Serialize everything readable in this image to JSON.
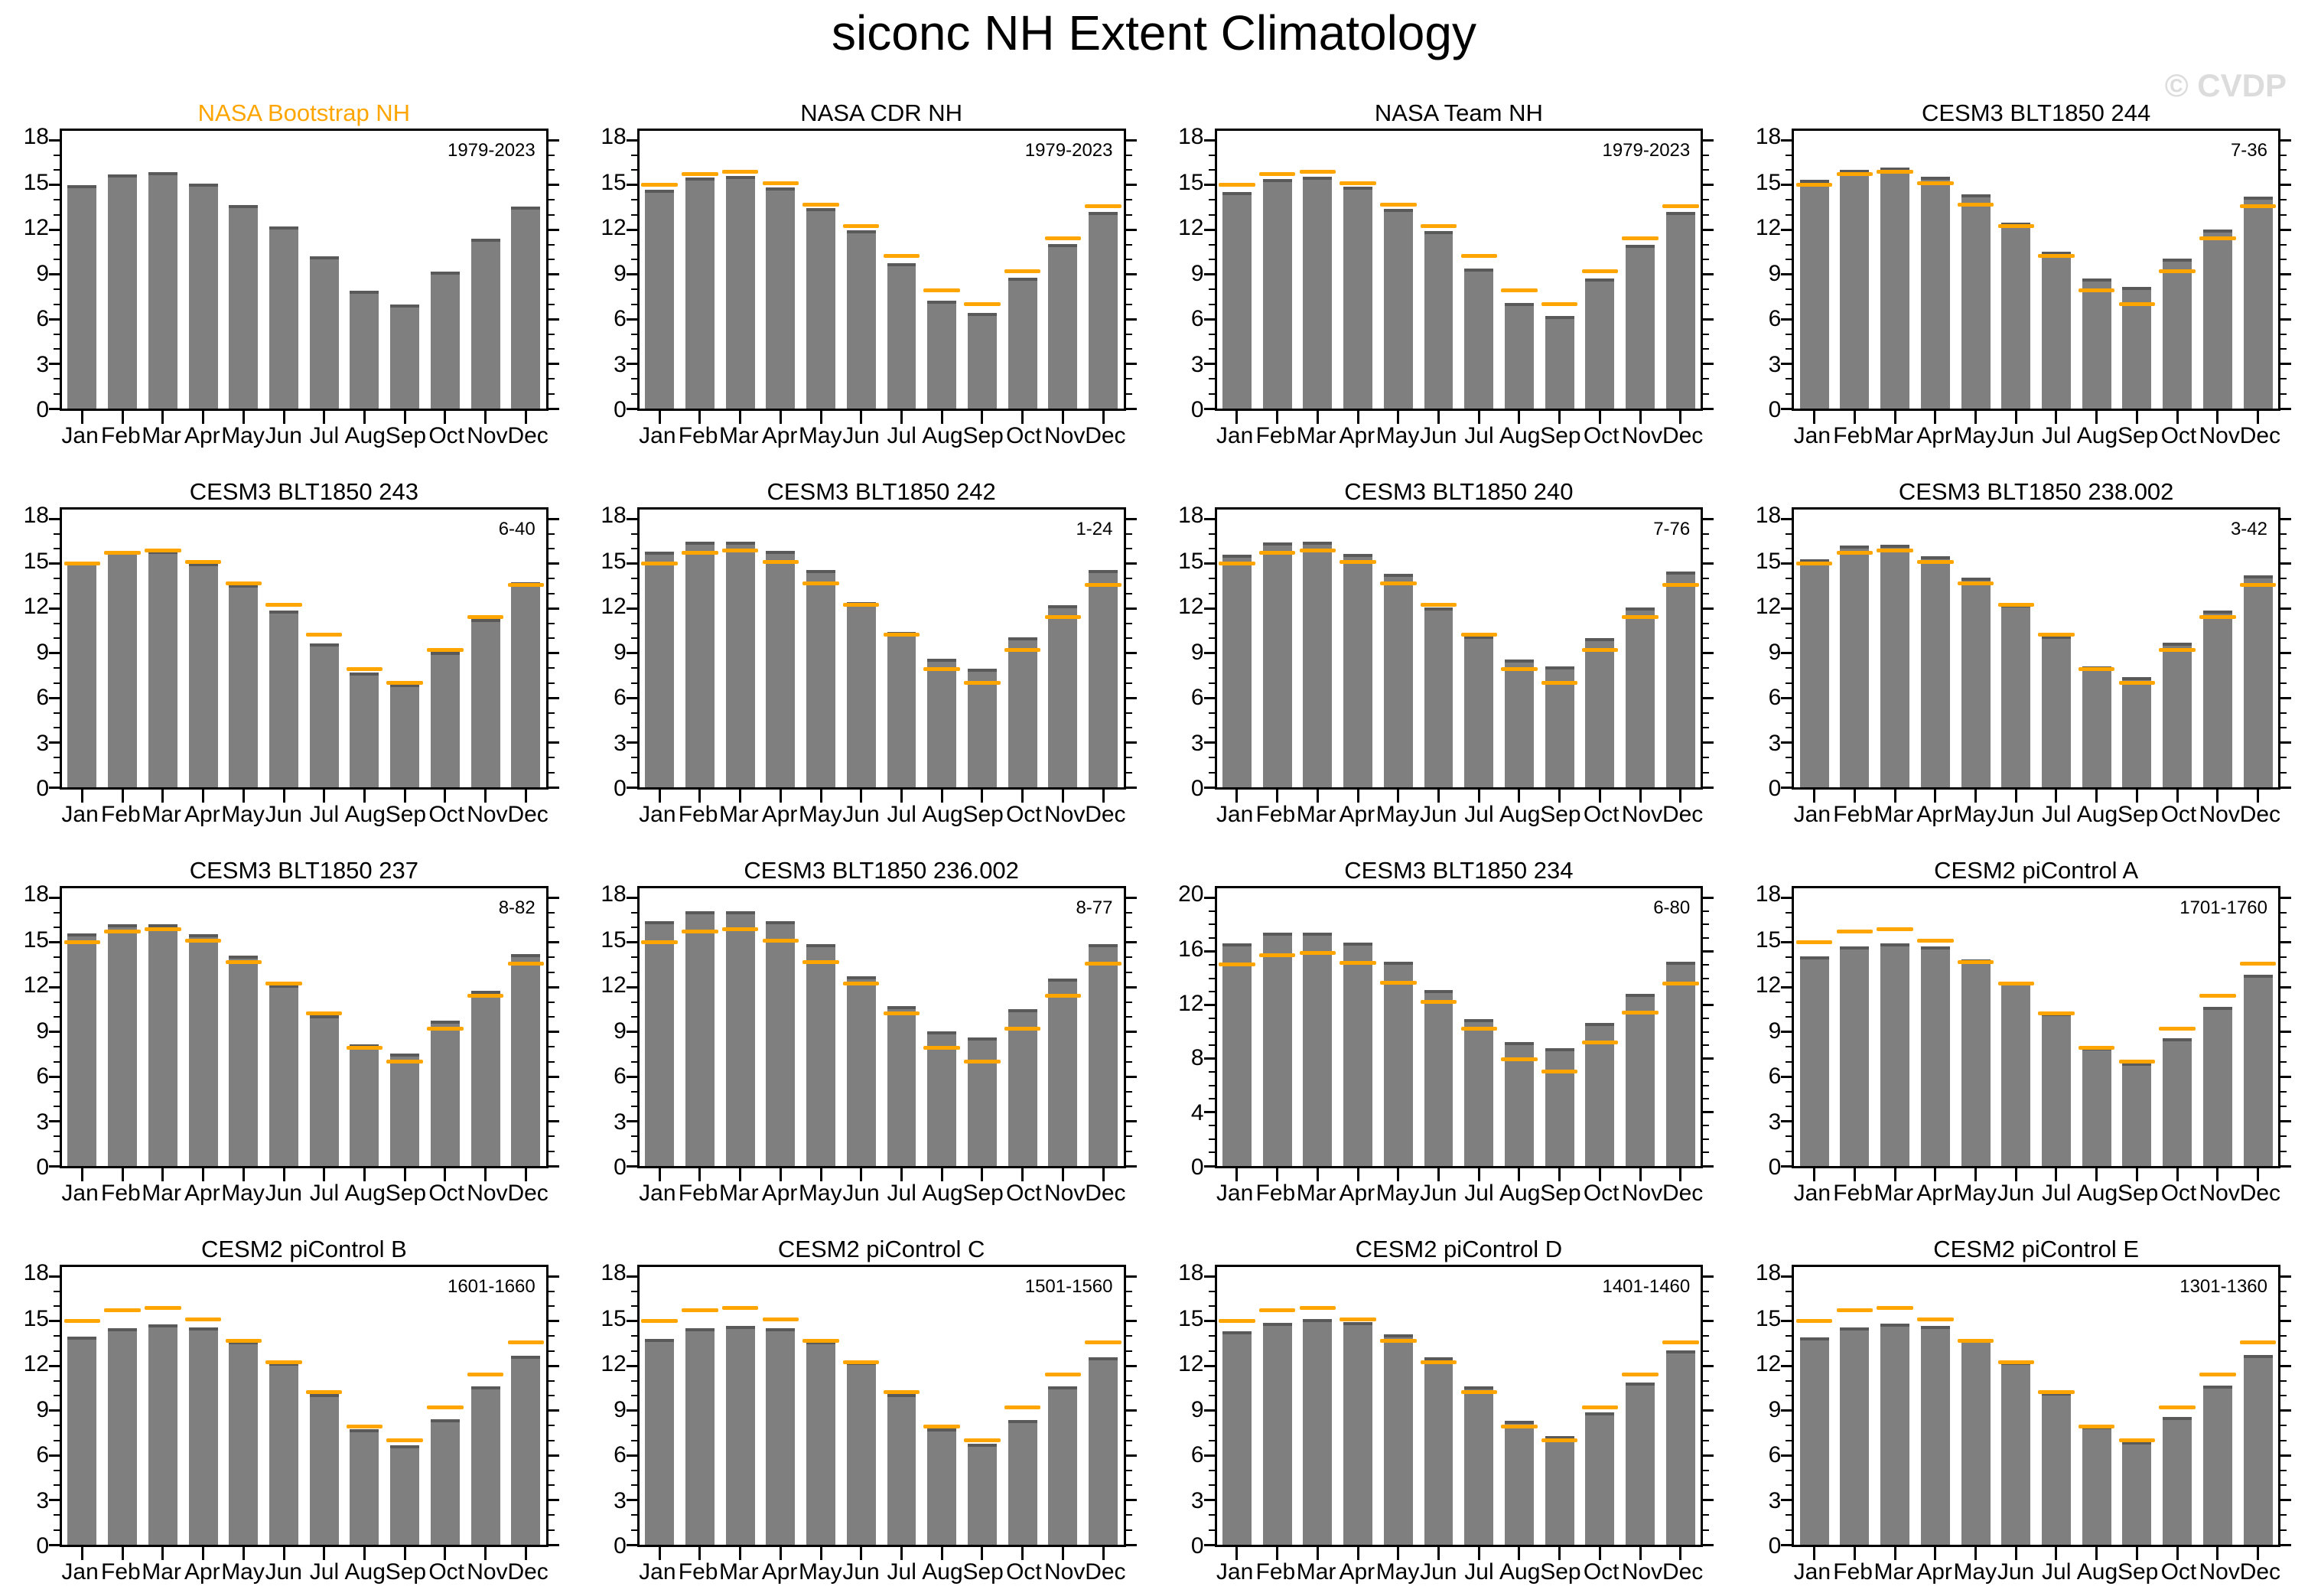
{
  "title": "siconc NH Extent Climatology",
  "watermark": "© CVDP",
  "months": [
    "Jan",
    "Feb",
    "Mar",
    "Apr",
    "May",
    "Jun",
    "Jul",
    "Aug",
    "Sep",
    "Oct",
    "Nov",
    "Dec"
  ],
  "colors": {
    "bar": "#7f7f7f",
    "bar_edge": "#595959",
    "obs_line": "#FFA500",
    "obs_title": "#FFA500",
    "watermark": "#dcdcdc"
  },
  "observation": {
    "name": "NASA Bootstrap NH",
    "values": [
      15.0,
      15.7,
      15.85,
      15.1,
      13.65,
      12.2,
      10.2,
      7.9,
      7.0,
      9.2,
      11.4,
      13.55
    ]
  },
  "chart_data": [
    {
      "type": "bar",
      "title": "NASA Bootstrap NH",
      "period": "1979-2023",
      "title_color": "#FFA500",
      "ylim": [
        0,
        18
      ],
      "ytick": 3,
      "categories": [
        "Jan",
        "Feb",
        "Mar",
        "Apr",
        "May",
        "Jun",
        "Jul",
        "Aug",
        "Sep",
        "Oct",
        "Nov",
        "Dec"
      ],
      "values": [
        15.0,
        15.7,
        15.85,
        15.1,
        13.65,
        12.2,
        10.2,
        7.9,
        7.0,
        9.2,
        11.4,
        13.55
      ],
      "show_obs": false
    },
    {
      "type": "bar",
      "title": "NASA CDR NH",
      "period": "1979-2023",
      "title_color": "#000000",
      "ylim": [
        0,
        18
      ],
      "ytick": 3,
      "categories": [
        "Jan",
        "Feb",
        "Mar",
        "Apr",
        "May",
        "Jun",
        "Jul",
        "Aug",
        "Sep",
        "Oct",
        "Nov",
        "Dec"
      ],
      "values": [
        14.7,
        15.5,
        15.6,
        14.85,
        13.45,
        11.95,
        9.75,
        7.25,
        6.4,
        8.8,
        11.05,
        13.2
      ],
      "show_obs": true
    },
    {
      "type": "bar",
      "title": "NASA Team NH",
      "period": "1979-2023",
      "title_color": "#000000",
      "ylim": [
        0,
        18
      ],
      "ytick": 3,
      "categories": [
        "Jan",
        "Feb",
        "Mar",
        "Apr",
        "May",
        "Jun",
        "Jul",
        "Aug",
        "Sep",
        "Oct",
        "Nov",
        "Dec"
      ],
      "values": [
        14.5,
        15.4,
        15.55,
        14.9,
        13.4,
        11.9,
        9.4,
        7.1,
        6.2,
        8.7,
        11.0,
        13.2
      ],
      "show_obs": true
    },
    {
      "type": "bar",
      "title": "CESM3 BLT1850 244",
      "period": "7-36",
      "title_color": "#000000",
      "ylim": [
        0,
        18
      ],
      "ytick": 3,
      "categories": [
        "Jan",
        "Feb",
        "Mar",
        "Apr",
        "May",
        "Jun",
        "Jul",
        "Aug",
        "Sep",
        "Oct",
        "Nov",
        "Dec"
      ],
      "values": [
        15.35,
        16.0,
        16.15,
        15.55,
        14.35,
        12.45,
        10.5,
        8.75,
        8.15,
        10.05,
        12.0,
        14.2
      ],
      "show_obs": true
    },
    {
      "type": "bar",
      "title": "CESM3 BLT1850 243",
      "period": "6-40",
      "title_color": "#000000",
      "ylim": [
        0,
        18
      ],
      "ytick": 3,
      "categories": [
        "Jan",
        "Feb",
        "Mar",
        "Apr",
        "May",
        "Jun",
        "Jul",
        "Aug",
        "Sep",
        "Oct",
        "Nov",
        "Dec"
      ],
      "values": [
        15.1,
        15.8,
        15.85,
        15.05,
        13.6,
        11.85,
        9.65,
        7.7,
        6.95,
        9.1,
        11.3,
        13.75
      ],
      "show_obs": true
    },
    {
      "type": "bar",
      "title": "CESM3 BLT1850 242",
      "period": "1-24",
      "title_color": "#000000",
      "ylim": [
        0,
        18
      ],
      "ytick": 3,
      "categories": [
        "Jan",
        "Feb",
        "Mar",
        "Apr",
        "May",
        "Jun",
        "Jul",
        "Aug",
        "Sep",
        "Oct",
        "Nov",
        "Dec"
      ],
      "values": [
        15.8,
        16.45,
        16.5,
        15.85,
        14.6,
        12.4,
        10.4,
        8.6,
        7.95,
        10.05,
        12.2,
        14.6
      ],
      "show_obs": true
    },
    {
      "type": "bar",
      "title": "CESM3 BLT1850 240",
      "period": "7-76",
      "title_color": "#000000",
      "ylim": [
        0,
        18
      ],
      "ytick": 3,
      "categories": [
        "Jan",
        "Feb",
        "Mar",
        "Apr",
        "May",
        "Jun",
        "Jul",
        "Aug",
        "Sep",
        "Oct",
        "Nov",
        "Dec"
      ],
      "values": [
        15.6,
        16.4,
        16.45,
        15.65,
        14.3,
        12.05,
        10.15,
        8.55,
        8.1,
        10.0,
        12.05,
        14.45
      ],
      "show_obs": true
    },
    {
      "type": "bar",
      "title": "CESM3 BLT1850 238.002",
      "period": "3-42",
      "title_color": "#000000",
      "ylim": [
        0,
        18
      ],
      "ytick": 3,
      "categories": [
        "Jan",
        "Feb",
        "Mar",
        "Apr",
        "May",
        "Jun",
        "Jul",
        "Aug",
        "Sep",
        "Oct",
        "Nov",
        "Dec"
      ],
      "values": [
        15.3,
        16.2,
        16.25,
        15.5,
        14.05,
        12.25,
        10.15,
        8.1,
        7.4,
        9.7,
        11.85,
        14.2
      ],
      "show_obs": true
    },
    {
      "type": "bar",
      "title": "CESM3 BLT1850 237",
      "period": "8-82",
      "title_color": "#000000",
      "ylim": [
        0,
        18
      ],
      "ytick": 3,
      "categories": [
        "Jan",
        "Feb",
        "Mar",
        "Apr",
        "May",
        "Jun",
        "Jul",
        "Aug",
        "Sep",
        "Oct",
        "Nov",
        "Dec"
      ],
      "values": [
        15.6,
        16.2,
        16.2,
        15.55,
        14.1,
        12.15,
        10.1,
        8.15,
        7.55,
        9.75,
        11.75,
        14.2
      ],
      "show_obs": true
    },
    {
      "type": "bar",
      "title": "CESM3 BLT1850 236.002",
      "period": "8-77",
      "title_color": "#000000",
      "ylim": [
        0,
        18
      ],
      "ytick": 3,
      "categories": [
        "Jan",
        "Feb",
        "Mar",
        "Apr",
        "May",
        "Jun",
        "Jul",
        "Aug",
        "Sep",
        "Oct",
        "Nov",
        "Dec"
      ],
      "values": [
        16.4,
        17.1,
        17.1,
        16.4,
        14.9,
        12.75,
        10.75,
        9.05,
        8.6,
        10.5,
        12.6,
        14.9
      ],
      "show_obs": true
    },
    {
      "type": "bar",
      "title": "CESM3 BLT1850 234",
      "period": "6-80",
      "title_color": "#000000",
      "ylim": [
        0,
        20
      ],
      "ytick": 4,
      "categories": [
        "Jan",
        "Feb",
        "Mar",
        "Apr",
        "May",
        "Jun",
        "Jul",
        "Aug",
        "Sep",
        "Oct",
        "Nov",
        "Dec"
      ],
      "values": [
        16.6,
        17.4,
        17.4,
        16.65,
        15.25,
        13.1,
        10.95,
        9.25,
        8.8,
        10.65,
        12.85,
        15.2
      ],
      "show_obs": true
    },
    {
      "type": "bar",
      "title": "CESM2 piControl A",
      "period": "1701-1760",
      "title_color": "#000000",
      "ylim": [
        0,
        18
      ],
      "ytick": 3,
      "categories": [
        "Jan",
        "Feb",
        "Mar",
        "Apr",
        "May",
        "Jun",
        "Jul",
        "Aug",
        "Sep",
        "Oct",
        "Nov",
        "Dec"
      ],
      "values": [
        14.05,
        14.75,
        14.95,
        14.75,
        13.85,
        12.3,
        10.25,
        7.95,
        6.95,
        8.55,
        10.7,
        12.85
      ],
      "show_obs": true
    },
    {
      "type": "bar",
      "title": "CESM2 piControl B",
      "period": "1601-1660",
      "title_color": "#000000",
      "ylim": [
        0,
        18
      ],
      "ytick": 3,
      "categories": [
        "Jan",
        "Feb",
        "Mar",
        "Apr",
        "May",
        "Jun",
        "Jul",
        "Aug",
        "Sep",
        "Oct",
        "Nov",
        "Dec"
      ],
      "values": [
        13.95,
        14.55,
        14.8,
        14.6,
        13.65,
        12.2,
        10.1,
        7.75,
        6.65,
        8.4,
        10.65,
        12.7
      ],
      "show_obs": true
    },
    {
      "type": "bar",
      "title": "CESM2 piControl C",
      "period": "1501-1560",
      "title_color": "#000000",
      "ylim": [
        0,
        18
      ],
      "ytick": 3,
      "categories": [
        "Jan",
        "Feb",
        "Mar",
        "Apr",
        "May",
        "Jun",
        "Jul",
        "Aug",
        "Sep",
        "Oct",
        "Nov",
        "Dec"
      ],
      "values": [
        13.8,
        14.5,
        14.7,
        14.55,
        13.65,
        12.25,
        10.1,
        7.8,
        6.75,
        8.35,
        10.6,
        12.6
      ],
      "show_obs": true
    },
    {
      "type": "bar",
      "title": "CESM2 piControl D",
      "period": "1401-1460",
      "title_color": "#000000",
      "ylim": [
        0,
        18
      ],
      "ytick": 3,
      "categories": [
        "Jan",
        "Feb",
        "Mar",
        "Apr",
        "May",
        "Jun",
        "Jul",
        "Aug",
        "Sep",
        "Oct",
        "Nov",
        "Dec"
      ],
      "values": [
        14.3,
        14.9,
        15.15,
        14.95,
        14.1,
        12.55,
        10.65,
        8.3,
        7.3,
        8.9,
        10.9,
        13.05
      ],
      "show_obs": true
    },
    {
      "type": "bar",
      "title": "CESM2 piControl E",
      "period": "1301-1360",
      "title_color": "#000000",
      "ylim": [
        0,
        18
      ],
      "ytick": 3,
      "categories": [
        "Jan",
        "Feb",
        "Mar",
        "Apr",
        "May",
        "Jun",
        "Jul",
        "Aug",
        "Sep",
        "Oct",
        "Nov",
        "Dec"
      ],
      "values": [
        13.9,
        14.6,
        14.85,
        14.7,
        13.75,
        12.25,
        10.2,
        7.95,
        6.95,
        8.55,
        10.7,
        12.75
      ],
      "show_obs": true
    }
  ]
}
